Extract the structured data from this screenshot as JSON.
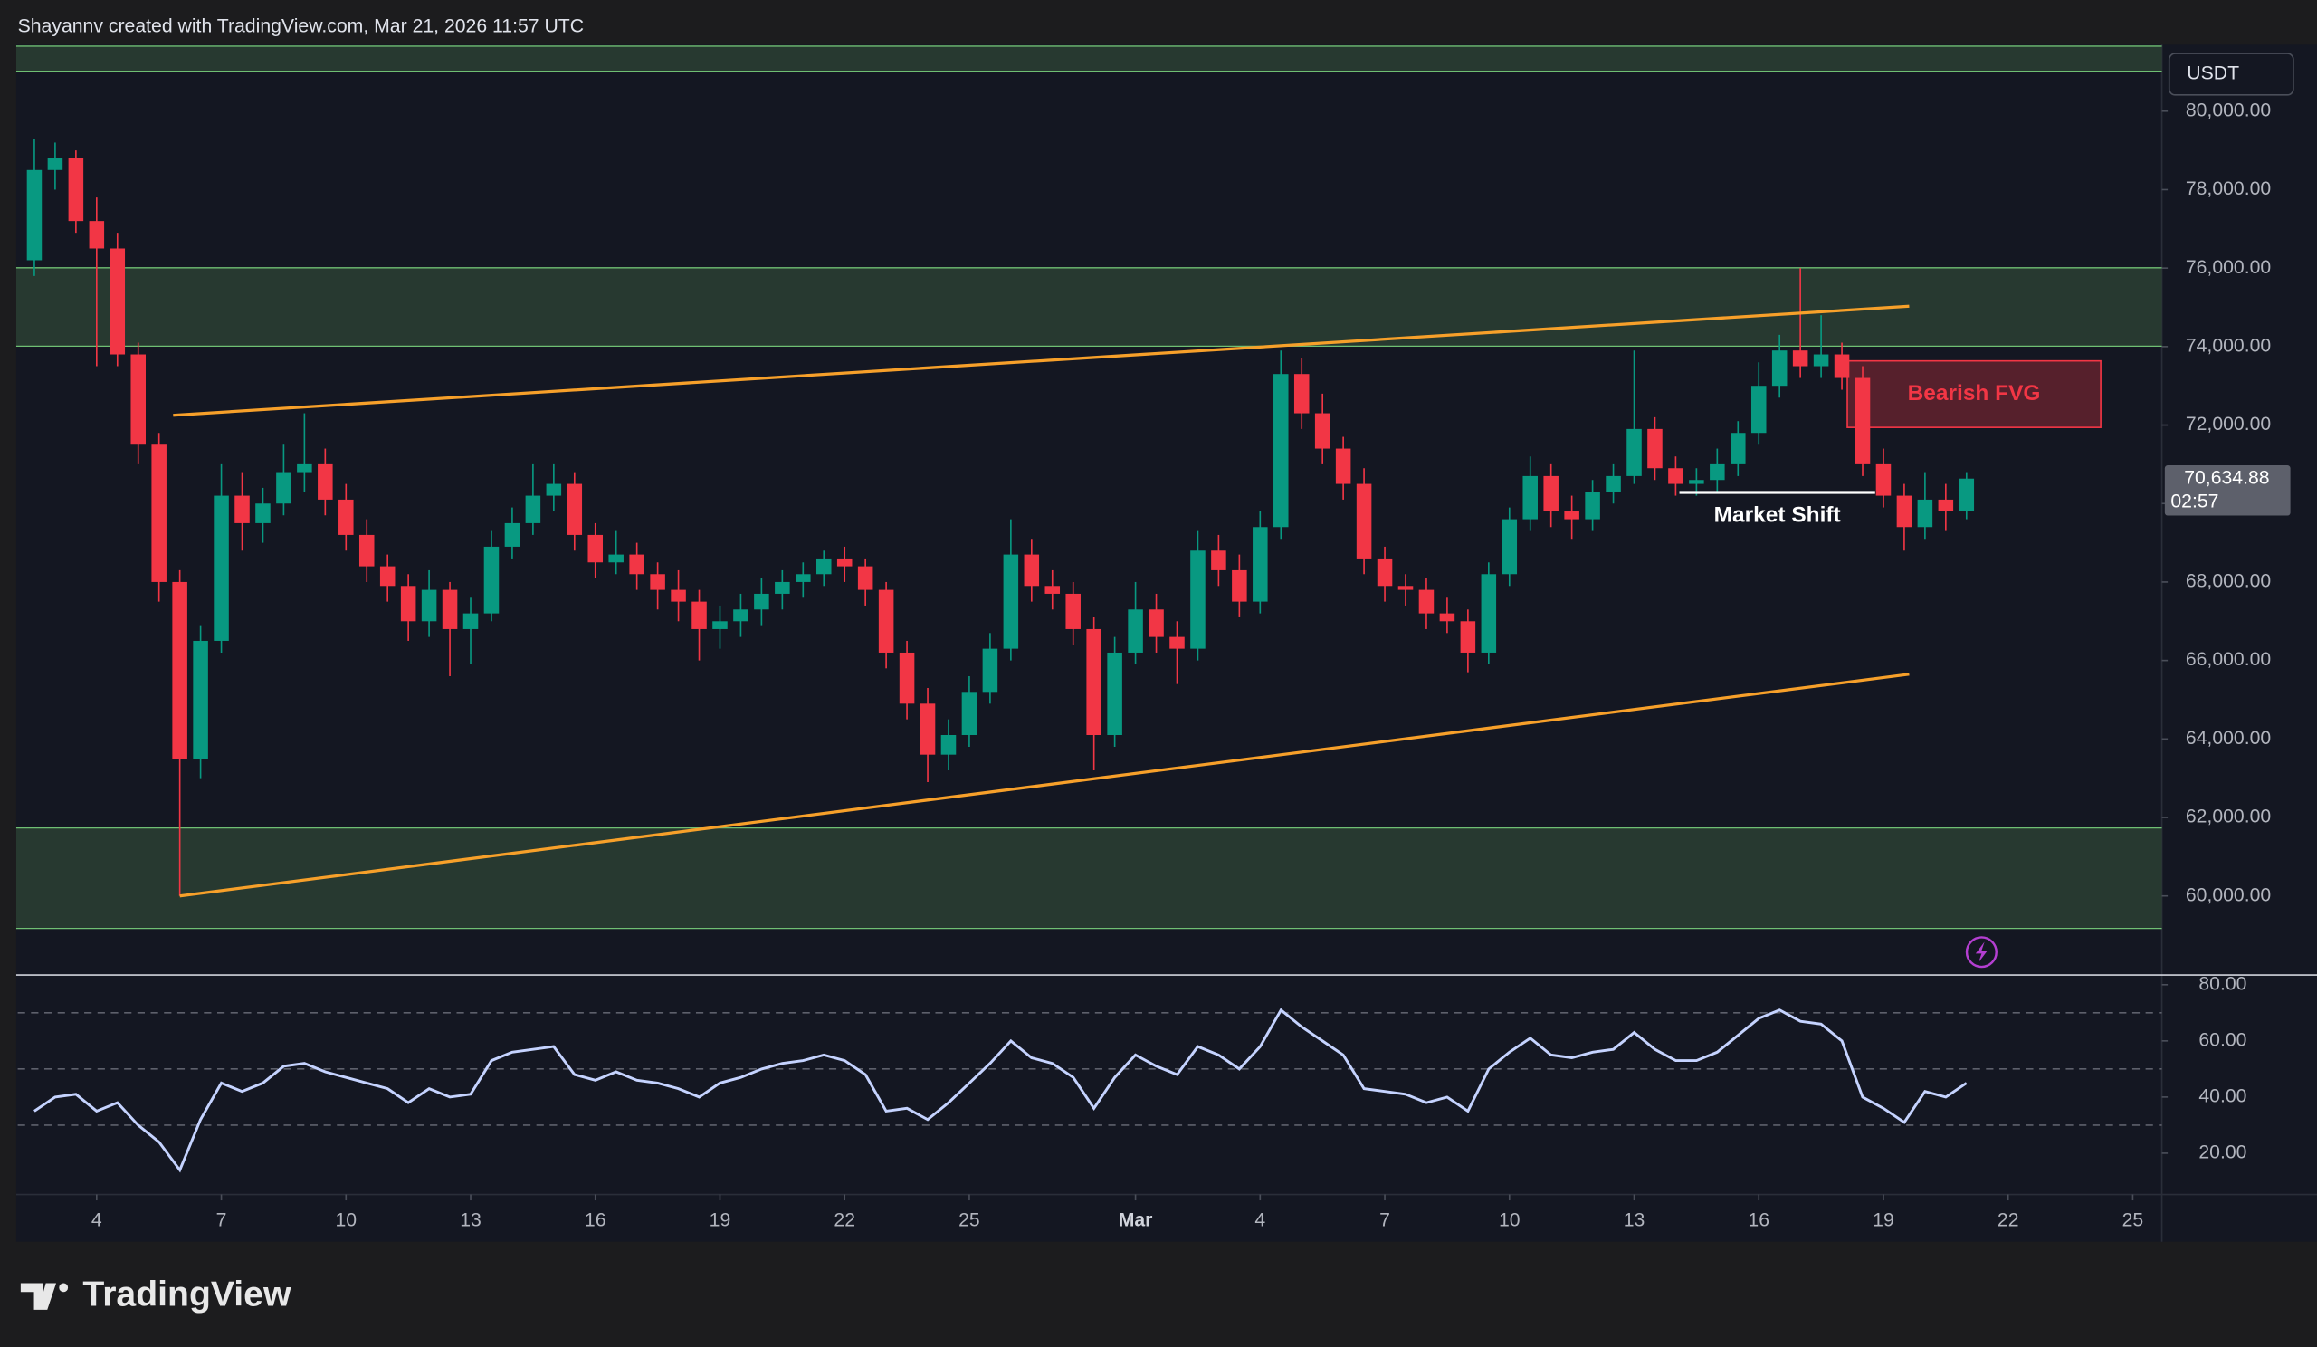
{
  "header": "Shayannv created with TradingView.com, Mar 21, 2026 11:57 UTC",
  "footer": "TradingView",
  "chart_data": [
    {
      "type": "candlestick",
      "currency": "USDT",
      "up_color": "#089981",
      "down_color": "#f23645",
      "x": [
        33.5,
        34,
        34.5,
        35,
        35.5,
        36,
        36.5,
        37,
        37.5,
        38,
        38.5,
        39,
        39.5,
        40,
        40.5,
        41,
        41.5,
        42,
        42.5,
        43,
        43.5,
        44,
        44.5,
        45,
        45.5,
        46,
        46.5,
        47,
        47.5,
        48,
        48.5,
        49,
        49.5,
        50,
        50.5,
        51,
        51.5,
        52,
        52.5,
        53,
        53.5,
        54,
        54.5,
        55,
        55.5,
        56,
        56.5,
        57,
        57.5,
        58,
        58.5,
        59,
        59.5,
        60,
        60.5,
        61,
        61.5,
        62,
        62.5,
        63,
        63.5,
        64,
        64.5,
        65,
        65.5,
        66,
        66.5,
        67,
        67.5,
        68,
        68.5,
        69,
        69.5,
        70,
        70.5,
        71,
        71.5,
        72,
        72.5,
        73,
        73.5,
        74,
        74.5,
        75,
        75.5,
        76,
        76.5,
        77,
        77.5,
        78,
        78.5,
        79,
        79.5,
        80
      ],
      "open": [
        76200,
        78500,
        78800,
        77200,
        76500,
        73800,
        71500,
        68000,
        63500,
        66500,
        70200,
        69500,
        70000,
        70800,
        71000,
        70100,
        69200,
        68400,
        67900,
        67000,
        67800,
        66800,
        67200,
        68900,
        69500,
        70200,
        70500,
        69200,
        68500,
        68700,
        68200,
        67800,
        67500,
        66800,
        67000,
        67300,
        67700,
        68000,
        68200,
        68600,
        68400,
        67800,
        66200,
        64900,
        63600,
        64100,
        65200,
        66300,
        68700,
        67900,
        67700,
        66800,
        64100,
        66200,
        67300,
        66600,
        66300,
        68800,
        68300,
        67500,
        69400,
        73300,
        72300,
        71400,
        70500,
        68600,
        67900,
        67800,
        67200,
        67000,
        66200,
        68200,
        69600,
        70700,
        69800,
        69600,
        70300,
        70700,
        71900,
        70900,
        70500,
        70600,
        71000,
        71800,
        73000,
        73900,
        73500,
        73800,
        73200,
        71000,
        70200,
        69400,
        70100,
        69800
      ],
      "high": [
        79300,
        79200,
        79000,
        77800,
        76900,
        74100,
        71800,
        68300,
        66900,
        71000,
        70800,
        70400,
        71500,
        72300,
        71400,
        70500,
        69600,
        68700,
        68200,
        68300,
        68000,
        67600,
        69300,
        69900,
        71000,
        71000,
        70800,
        69500,
        69300,
        69000,
        68500,
        68300,
        67800,
        67400,
        67700,
        68100,
        68300,
        68500,
        68800,
        68900,
        68600,
        68000,
        66500,
        65300,
        64500,
        65600,
        66700,
        69600,
        69100,
        68300,
        68000,
        67100,
        66600,
        68000,
        67700,
        67000,
        69300,
        69200,
        68700,
        69800,
        73900,
        73700,
        72800,
        71700,
        70900,
        68900,
        68200,
        68100,
        67600,
        67300,
        68500,
        69900,
        71200,
        71000,
        70200,
        70600,
        71000,
        73900,
        72200,
        71200,
        70900,
        71400,
        72100,
        73600,
        74300,
        76000,
        74800,
        74100,
        73500,
        71400,
        70500,
        70800,
        70500,
        70800
      ],
      "low": [
        75800,
        78000,
        76900,
        73500,
        73500,
        71000,
        67500,
        60000,
        63000,
        66200,
        68800,
        69000,
        69700,
        70300,
        69700,
        68800,
        68000,
        67500,
        66500,
        66600,
        65600,
        65900,
        67000,
        68600,
        69200,
        69800,
        68800,
        68100,
        68200,
        67800,
        67300,
        67000,
        66000,
        66300,
        66600,
        66900,
        67300,
        67600,
        67900,
        68000,
        67400,
        65800,
        64500,
        62900,
        63200,
        63800,
        64900,
        66000,
        67500,
        67300,
        66400,
        63200,
        63800,
        65900,
        66200,
        65400,
        66000,
        67900,
        67100,
        67200,
        69100,
        71900,
        71000,
        70100,
        68200,
        67500,
        67400,
        66800,
        66700,
        65700,
        65900,
        67900,
        69300,
        69400,
        69100,
        69300,
        70000,
        70500,
        70600,
        70200,
        70200,
        70300,
        70700,
        71500,
        72700,
        73200,
        73200,
        72900,
        70700,
        69900,
        68800,
        69100,
        69300,
        69600
      ],
      "close": [
        78500,
        78800,
        77200,
        76500,
        73800,
        71500,
        68000,
        63500,
        66500,
        70200,
        69500,
        70000,
        70800,
        71000,
        70100,
        69200,
        68400,
        67900,
        67000,
        67800,
        66800,
        67200,
        68900,
        69500,
        70200,
        70500,
        69200,
        68500,
        68700,
        68200,
        67800,
        67500,
        66800,
        67000,
        67300,
        67700,
        68000,
        68200,
        68600,
        68400,
        67800,
        66200,
        64900,
        63600,
        64100,
        65200,
        66300,
        68700,
        67900,
        67700,
        66800,
        64100,
        66200,
        67300,
        66600,
        66300,
        68800,
        68300,
        67500,
        69400,
        73300,
        72300,
        71400,
        70500,
        68600,
        67900,
        67800,
        67200,
        67000,
        66200,
        68200,
        69600,
        70700,
        69800,
        69600,
        70300,
        70700,
        71900,
        70900,
        70500,
        70600,
        71000,
        71800,
        73000,
        73900,
        73500,
        73800,
        73200,
        71000,
        70200,
        69400,
        70100,
        69800,
        70634.88
      ],
      "xlim": [
        33.1,
        84.7
      ],
      "xticks": [
        {
          "value": 35,
          "label": "4"
        },
        {
          "value": 38,
          "label": "7"
        },
        {
          "value": 41,
          "label": "10"
        },
        {
          "value": 44,
          "label": "13"
        },
        {
          "value": 47,
          "label": "16"
        },
        {
          "value": 50,
          "label": "19"
        },
        {
          "value": 53,
          "label": "22"
        },
        {
          "value": 56,
          "label": "25"
        },
        {
          "value": 60,
          "label": "Mar"
        },
        {
          "value": 63,
          "label": "4"
        },
        {
          "value": 66,
          "label": "7"
        },
        {
          "value": 69,
          "label": "10"
        },
        {
          "value": 72,
          "label": "13"
        },
        {
          "value": 75,
          "label": "16"
        },
        {
          "value": 78,
          "label": "19"
        },
        {
          "value": 81,
          "label": "22"
        },
        {
          "value": 84,
          "label": "25"
        }
      ],
      "ylim": [
        58004,
        81657
      ],
      "yticks": [
        {
          "value": 60000,
          "label": "60,000.00"
        },
        {
          "value": 62000,
          "label": "62,000.00"
        },
        {
          "value": 64000,
          "label": "64,000.00"
        },
        {
          "value": 66000,
          "label": "66,000.00"
        },
        {
          "value": 68000,
          "label": "68,000.00"
        },
        {
          "value": 70000,
          "label": "70,000.00"
        },
        {
          "value": 72000,
          "label": "72,000.00"
        },
        {
          "value": 74000,
          "label": "74,000.00"
        },
        {
          "value": 76000,
          "label": "76,000.00"
        },
        {
          "value": 78000,
          "label": "78,000.00"
        },
        {
          "value": 80000,
          "label": "80,000.00"
        }
      ],
      "grid": false,
      "zone_color": "#2a3f33",
      "zone_edge": "#6fbf73",
      "zones": [
        [
          81017,
          81657
        ],
        [
          74011,
          76008
        ],
        [
          59171,
          61733
        ]
      ],
      "trend_color": "#f7a02a",
      "trendlines": [
        {
          "x": [
            36.84,
            78.62
          ],
          "y": [
            72250,
            75028
          ]
        },
        {
          "x": [
            37.0,
            78.62
          ],
          "y": [
            60000,
            65650
          ]
        }
      ],
      "fvg": {
        "text": "Bearish FVG",
        "x": [
          77.13,
          83.23
        ],
        "y": [
          71940,
          73635
        ],
        "color": "#f23645"
      },
      "market_shift": {
        "text": "Market Shift",
        "x": [
          73.09,
          77.8
        ],
        "y": 70282
      },
      "price_tag": {
        "value": 70634.88,
        "label": "70,634.88"
      },
      "countdown": "02:57"
    },
    {
      "type": "line",
      "color": "#c5d3ff",
      "x": [
        33.5,
        34,
        34.5,
        35,
        35.5,
        36,
        36.5,
        37,
        37.5,
        38,
        38.5,
        39,
        39.5,
        40,
        40.5,
        41,
        41.5,
        42,
        42.5,
        43,
        43.5,
        44,
        44.5,
        45,
        45.5,
        46,
        46.5,
        47,
        47.5,
        48,
        48.5,
        49,
        49.5,
        50,
        50.5,
        51,
        51.5,
        52,
        52.5,
        53,
        53.5,
        54,
        54.5,
        55,
        55.5,
        56,
        56.5,
        57,
        57.5,
        58,
        58.5,
        59,
        59.5,
        60,
        60.5,
        61,
        61.5,
        62,
        62.5,
        63,
        63.5,
        64,
        64.5,
        65,
        65.5,
        66,
        66.5,
        67,
        67.5,
        68,
        68.5,
        69,
        69.5,
        70,
        70.5,
        71,
        71.5,
        72,
        72.5,
        73,
        73.5,
        74,
        74.5,
        75,
        75.5,
        76,
        76.5,
        77,
        77.5,
        78,
        78.5,
        79,
        79.5,
        80
      ],
      "values": [
        35,
        40,
        41,
        35,
        38,
        30,
        24,
        14,
        32,
        45,
        42,
        45,
        51,
        52,
        49,
        47,
        45,
        43,
        38,
        43,
        40,
        41,
        53,
        56,
        57,
        58,
        48,
        46,
        49,
        46,
        45,
        43,
        40,
        45,
        47,
        50,
        52,
        53,
        55,
        53,
        48,
        35,
        36,
        32,
        38,
        45,
        52,
        60,
        54,
        52,
        47,
        36,
        47,
        55,
        51,
        48,
        58,
        55,
        50,
        58,
        71,
        65,
        60,
        55,
        43,
        42,
        41,
        38,
        40,
        35,
        50,
        56,
        61,
        55,
        54,
        56,
        57,
        63,
        57,
        53,
        53,
        56,
        62,
        68,
        71,
        67,
        66,
        60,
        40,
        36,
        31,
        42,
        40,
        45
      ],
      "levels": [
        70,
        50,
        30
      ],
      "ylim": [
        5.3,
        83.2
      ],
      "yticks": [
        {
          "value": 20,
          "label": "20.00"
        },
        {
          "value": 40,
          "label": "40.00"
        },
        {
          "value": 60,
          "label": "60.00"
        },
        {
          "value": 80,
          "label": "80.00"
        }
      ]
    }
  ]
}
